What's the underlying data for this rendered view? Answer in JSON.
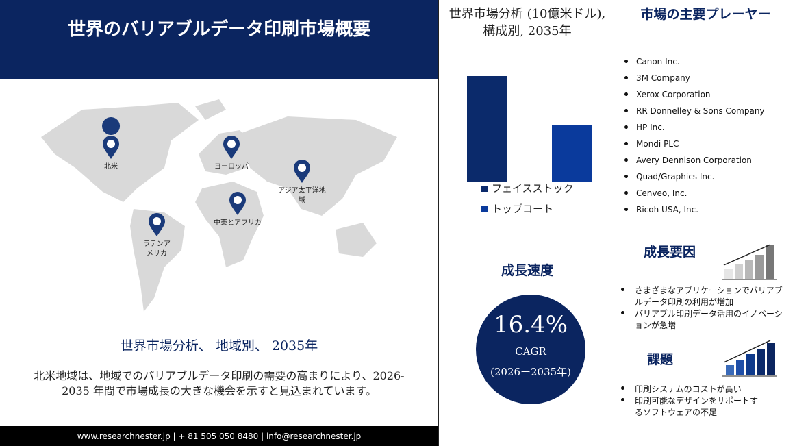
{
  "header": {
    "title": "世界のバリアブルデータ印刷市場概要"
  },
  "map": {
    "regions": [
      "北米",
      "ヨーロッパ",
      "アジア太平洋地域",
      "中東とアフリカ",
      "ラテンアメリカ"
    ]
  },
  "regional": {
    "title": "世界市場分析、 地域別、 2035年",
    "text": "北米地域は、地域でのバリアブルデータ印刷の需要の高まりにより、2026-2035 年間で市場成長の大きな機会を示すと見込まれています。"
  },
  "chart_data": {
    "type": "bar",
    "title": "世界市場分析 (10億米ドル), 構成別, 2035年",
    "categories": [
      "フェイスストック",
      "トップコート"
    ],
    "values": [
      3.1,
      1.66
    ],
    "colors": [
      "#0b2a6b",
      "#0a3a9c"
    ]
  },
  "growth_rate": {
    "title": "成長速度",
    "value": "16.4%",
    "label": "CAGR",
    "period": "(2026ー2035年)"
  },
  "players": {
    "title": "市場の主要プレーヤー",
    "items": [
      "Canon Inc.",
      "3M Company",
      "Xerox Corporation",
      "RR Donnelley & Sons Company",
      "HP Inc.",
      "Mondi PLC",
      "Avery Dennison Corporation",
      "Quad/Graphics Inc.",
      "Cenveo, Inc.",
      "Ricoh USA, Inc."
    ]
  },
  "drivers": {
    "title": "成長要因",
    "items": [
      "さまざまなアプリケーションでバリアブルデータ印刷の利用が増加",
      "バリアブル印刷データ活用のイノベーションが急増"
    ]
  },
  "challenges": {
    "title": "課題",
    "items": [
      "印刷システムのコストが高い",
      "印刷可能なデザインをサポートするソフトウェアの不足"
    ]
  },
  "footer": {
    "text": "www.researchnester.jp | + 81 505 050 8480 | info@researchnester.jp"
  }
}
